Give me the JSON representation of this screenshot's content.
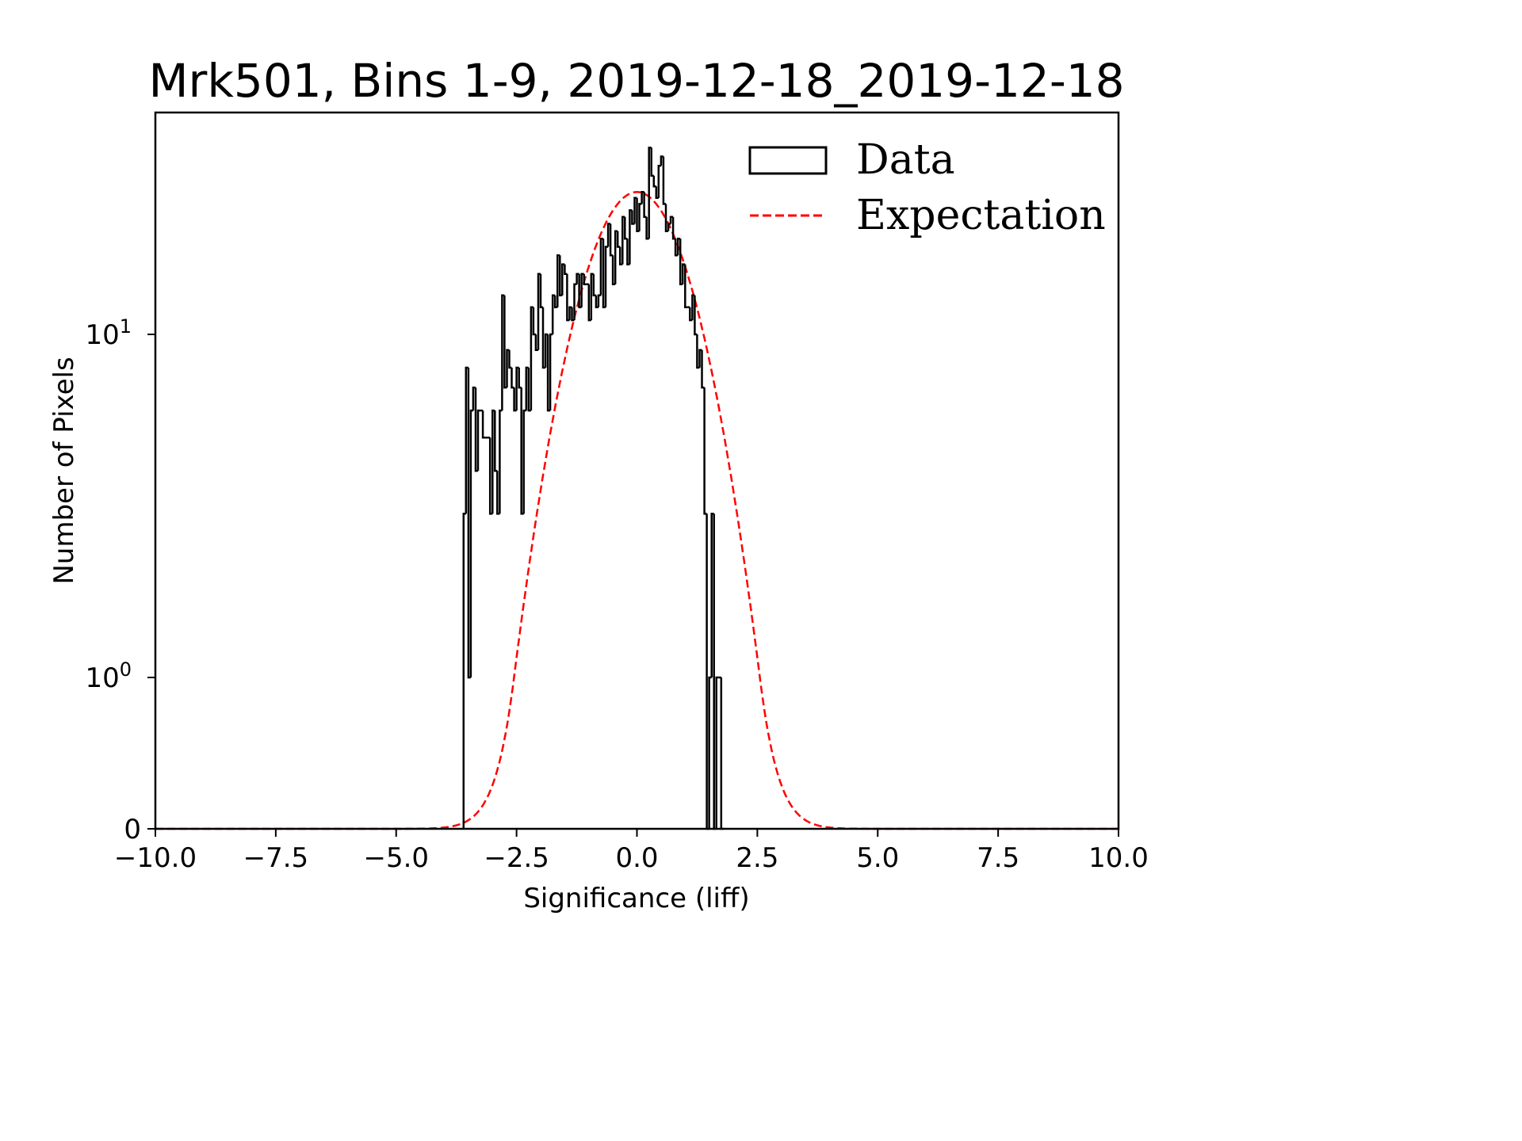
{
  "chart_data": {
    "type": "bar",
    "title": "Mrk501, Bins 1-9, 2019-12-18_2019-12-18",
    "xlabel": "Significance (liff)",
    "ylabel": "Number of Pixels",
    "xlim": [
      -10,
      10
    ],
    "yscale": "symlog",
    "ylim": [
      0,
      45
    ],
    "linthresh": 1,
    "x_ticks": [
      -10.0,
      -7.5,
      -5.0,
      -2.5,
      0.0,
      2.5,
      5.0,
      7.5,
      10.0
    ],
    "x_tick_labels": [
      "−10.0",
      "−7.5",
      "−5.0",
      "−2.5",
      "0.0",
      "2.5",
      "5.0",
      "7.5",
      "10.0"
    ],
    "y_ticks": [
      0,
      1,
      10
    ],
    "y_tick_labels": [
      "0",
      "10",
      "10"
    ],
    "y_tick_exponents": [
      "",
      "0",
      "1"
    ],
    "grid": false,
    "legend": {
      "location": "upper-right",
      "entries": [
        {
          "label": "Data",
          "style": "step-histogram",
          "color": "#000000"
        },
        {
          "label": "Expectation",
          "style": "dashed-line",
          "color": "#ff0000"
        }
      ]
    },
    "series": [
      {
        "name": "Data",
        "kind": "histogram",
        "color": "#000000",
        "bin_start": -3.6,
        "bin_width": 0.05,
        "counts": [
          3,
          8,
          1,
          6,
          7,
          4,
          6,
          6,
          5,
          5,
          5,
          3,
          6,
          4,
          3,
          6,
          13,
          7,
          9,
          8,
          7,
          6,
          8,
          7,
          3,
          6,
          8,
          6,
          12,
          10,
          9,
          15,
          12,
          8,
          10,
          6,
          10,
          13,
          12,
          17,
          13,
          16,
          15,
          11,
          12,
          11,
          14,
          15,
          12,
          15,
          14,
          14,
          11,
          15,
          13,
          12,
          13,
          19,
          12,
          18,
          21,
          17,
          14,
          20,
          18,
          16,
          22,
          19,
          16,
          23,
          21,
          25,
          20,
          24,
          26,
          22,
          19,
          35,
          29,
          27,
          25,
          31,
          33,
          24,
          20,
          21,
          22,
          19,
          17,
          19,
          14,
          16,
          12,
          12,
          11,
          13,
          10,
          8,
          9,
          7,
          3,
          0,
          1,
          3,
          0,
          1,
          1,
          0
        ],
        "notes": "Per-bin counts estimated from the step outline on a symlog axis; exact values not labeled."
      },
      {
        "name": "Expectation",
        "kind": "gaussian",
        "color": "#ff0000",
        "mean": 0.0,
        "sigma": 1.0,
        "peak": 26,
        "x_range": [
          -10,
          10
        ],
        "notes": "Dashed red curve; peak near 26 pixels at significance 0, truncated to 0 near |x|~4.5."
      }
    ]
  }
}
